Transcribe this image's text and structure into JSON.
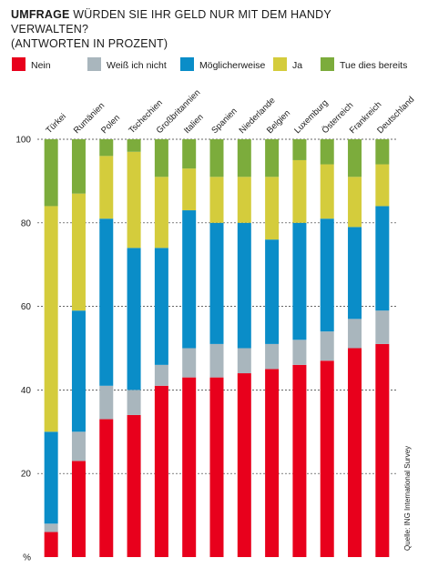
{
  "header": {
    "kicker": "UMFRAGE",
    "title": "WÜRDEN SIE IHR GELD NUR MIT DEM HANDY VERWALTEN?",
    "subtitle": "(ANTWORTEN IN PROZENT)"
  },
  "source": "Quelle: ING International Survey",
  "colors": {
    "Nein": "#e8001c",
    "Weiß ich nicht": "#a9b6bd",
    "Möglicherweise": "#0a8dc8",
    "Ja": "#d4cc3c",
    "Tue dies bereits": "#7cac3c",
    "grid": "#333333"
  },
  "chart_data": {
    "type": "bar",
    "stacked": true,
    "categories": [
      "Türkei",
      "Rumänien",
      "Polen",
      "Tschechien",
      "Großbritannien",
      "Italien",
      "Spanien",
      "Niederlande",
      "Belgien",
      "Luxemburg",
      "Österreich",
      "Frankreich",
      "Deutschland"
    ],
    "series": [
      {
        "name": "Nein",
        "values": [
          6,
          23,
          33,
          34,
          41,
          43,
          43,
          44,
          45,
          46,
          47,
          50,
          51
        ]
      },
      {
        "name": "Weiß ich nicht",
        "values": [
          2,
          7,
          8,
          6,
          5,
          7,
          8,
          6,
          6,
          6,
          7,
          7,
          8
        ]
      },
      {
        "name": "Möglicherweise",
        "values": [
          22,
          29,
          40,
          34,
          28,
          33,
          29,
          30,
          25,
          28,
          27,
          22,
          25
        ]
      },
      {
        "name": "Ja",
        "values": [
          54,
          28,
          15,
          23,
          17,
          10,
          11,
          11,
          15,
          15,
          13,
          12,
          10
        ]
      },
      {
        "name": "Tue dies bereits",
        "values": [
          16,
          13,
          4,
          3,
          9,
          7,
          9,
          9,
          9,
          5,
          6,
          9,
          6
        ]
      }
    ],
    "ylim": [
      0,
      100
    ],
    "yticks": [
      "100",
      "80",
      "60",
      "40",
      "20",
      "%"
    ],
    "ytick_values": [
      100,
      80,
      60,
      40,
      20,
      0
    ],
    "grid": true,
    "legend_position": "top"
  }
}
